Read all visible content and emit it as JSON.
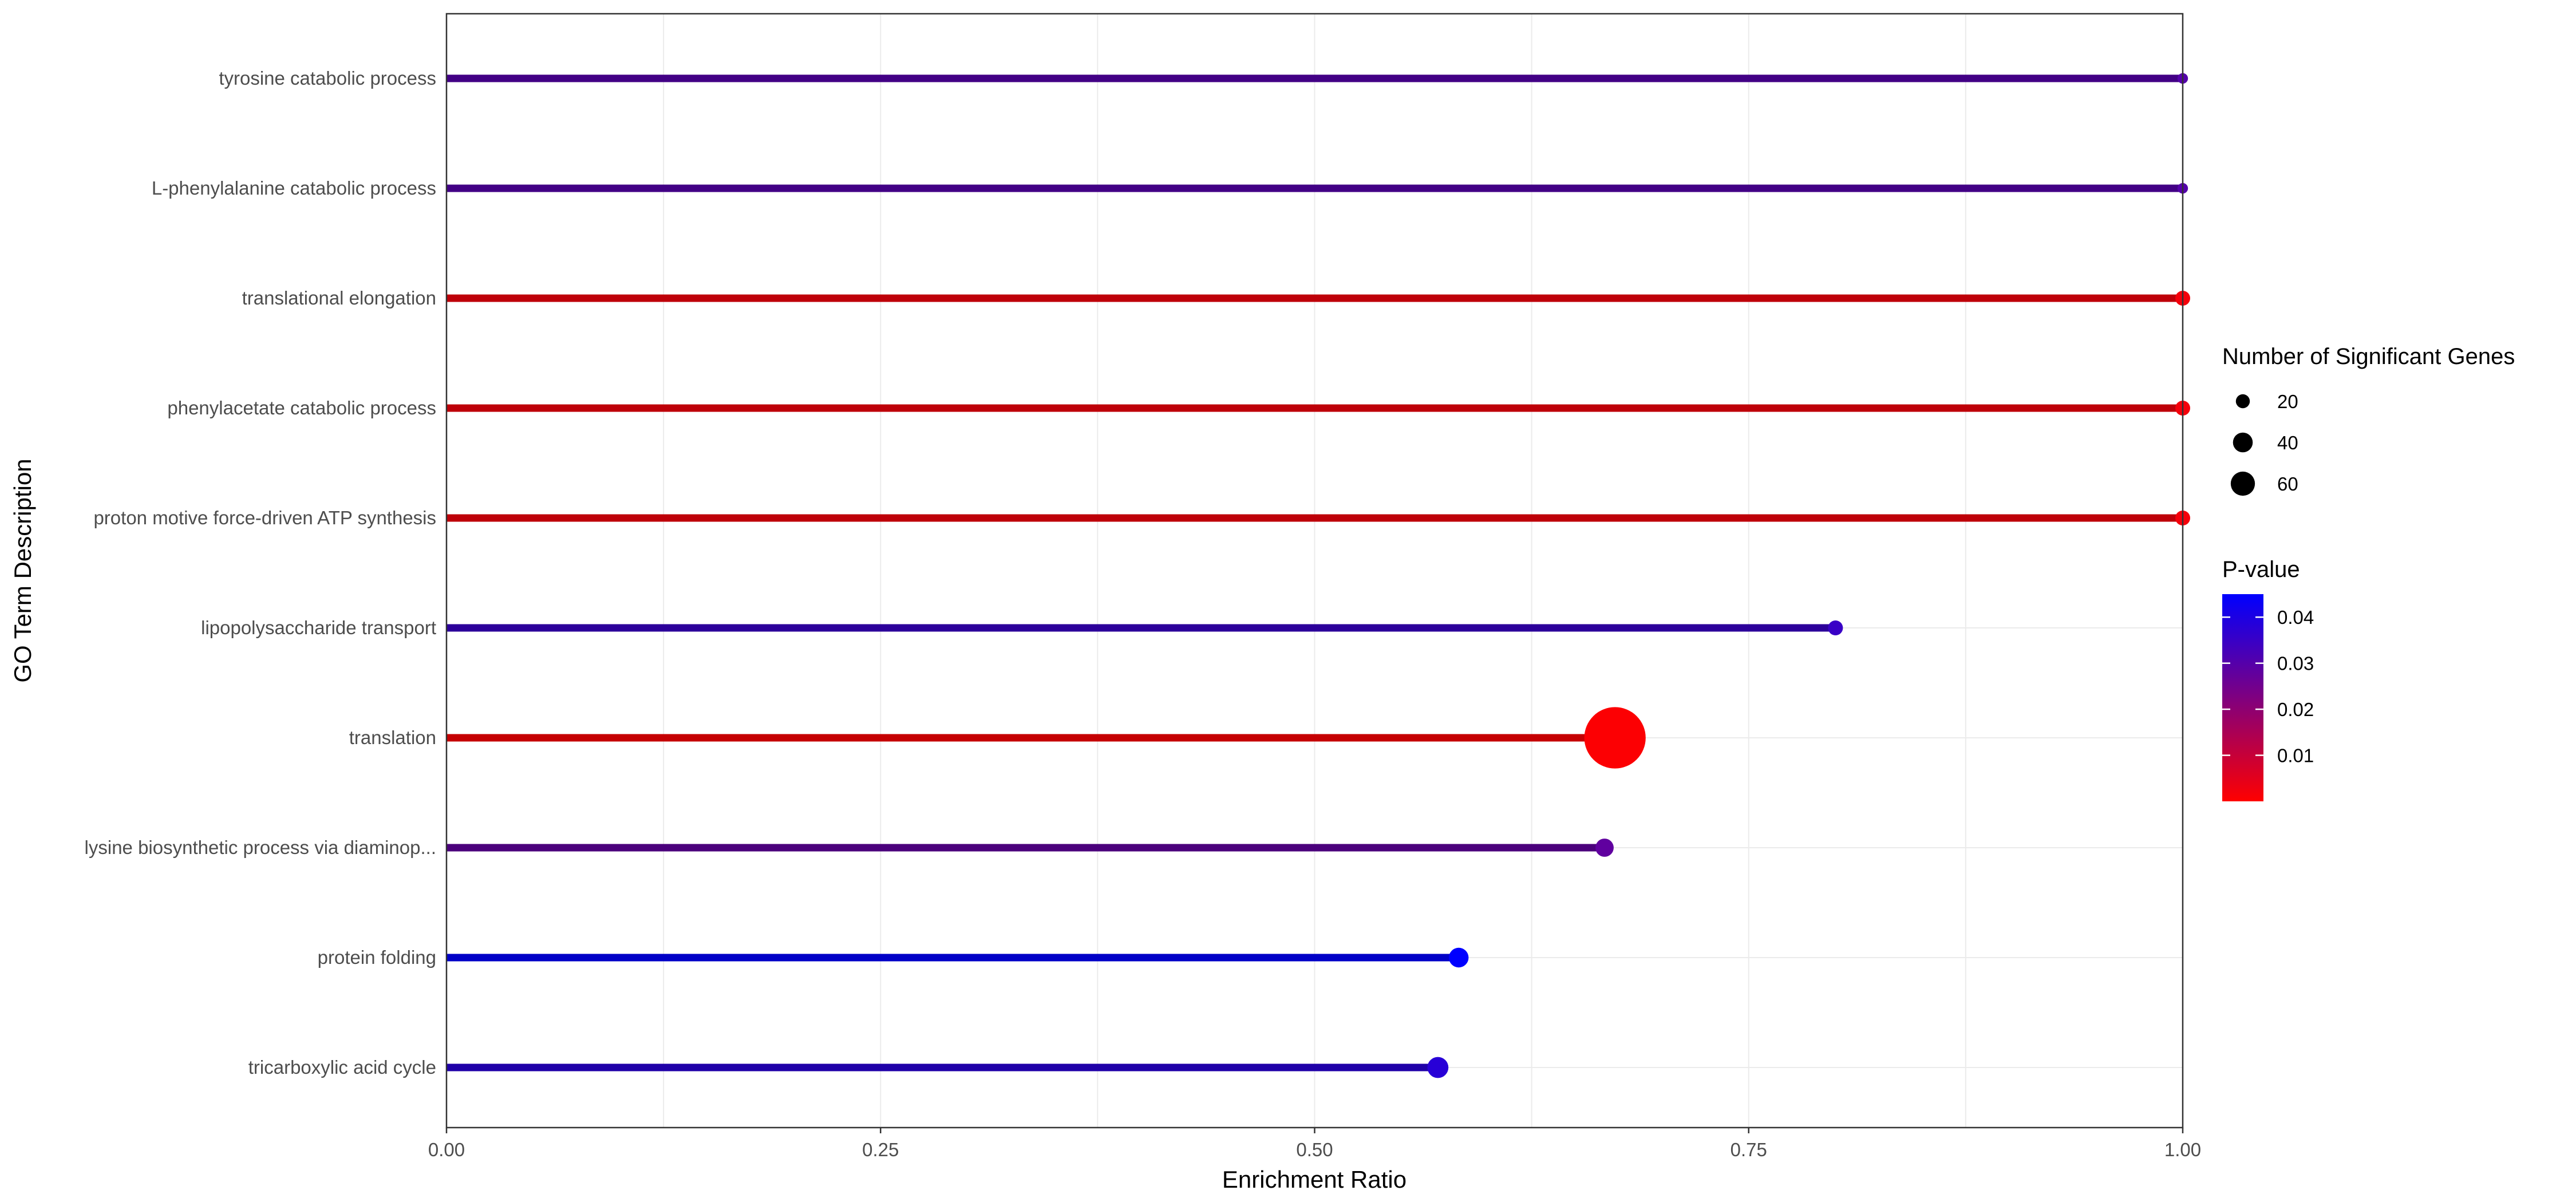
{
  "chart_data": {
    "type": "lollipop",
    "xlabel": "Enrichment Ratio",
    "ylabel": "GO Term Description",
    "xlim": [
      0,
      1
    ],
    "x_ticks": [
      "0.00",
      "0.25",
      "0.50",
      "0.75",
      "1.00"
    ],
    "grid": true,
    "categories": [
      "tyrosine catabolic process",
      "L-phenylalanine catabolic process",
      "translational elongation",
      "phenylacetate catabolic process",
      "proton motive force-driven ATP synthesis",
      "lipopolysaccharide transport",
      "translation",
      "lysine biosynthetic process via diaminop...",
      "protein folding",
      "tricarboxylic acid cycle"
    ],
    "series": [
      {
        "enrichment_ratio": [
          1.0,
          1.0,
          1.0,
          1.0,
          1.0,
          0.8,
          0.673,
          0.667,
          0.583,
          0.571
        ],
        "p_value": [
          0.03,
          0.03,
          0.002,
          0.002,
          0.002,
          0.035,
          0.0005,
          0.028,
          0.048,
          0.038
        ],
        "significant_genes": [
          2,
          2,
          4,
          4,
          4,
          4,
          68,
          6,
          7,
          8
        ]
      }
    ],
    "size_legend": {
      "title": "Number of Significant Genes",
      "values": [
        20,
        40,
        60
      ],
      "labels": [
        "20",
        "40",
        "60"
      ],
      "color": "#000000"
    },
    "color_legend": {
      "title": "P-value",
      "ticks": [
        0.04,
        0.03,
        0.02,
        0.01
      ],
      "tick_labels": [
        "0.04",
        "0.03",
        "0.02",
        "0.01"
      ],
      "range": [
        0.0,
        0.045
      ],
      "low_color": "#ff0000",
      "high_color": "#0000ff"
    },
    "legend_position": "right",
    "stem_dark_factor": 0.78
  }
}
